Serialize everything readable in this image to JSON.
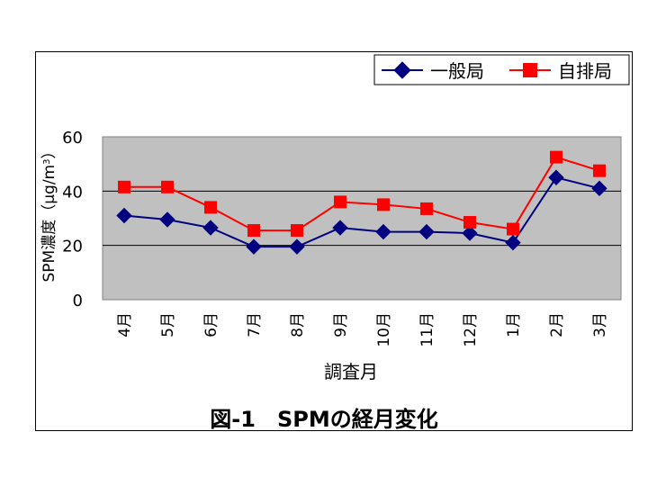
{
  "chart_data": {
    "type": "line",
    "title": "図-1　SPMの経月変化",
    "xlabel": "調査月",
    "ylabel": "SPM濃度（μg/m",
    "ylabel_sup": "3",
    "ylabel_close": "）",
    "categories": [
      "4月",
      "5月",
      "6月",
      "7月",
      "8月",
      "9月",
      "10月",
      "11月",
      "12月",
      "1月",
      "2月",
      "3月"
    ],
    "ylim": [
      0,
      60
    ],
    "yticks": [
      0,
      20,
      40,
      60
    ],
    "grid": true,
    "legend_position": "top-right",
    "plot_background": "#c0c0c0",
    "series": [
      {
        "name": "一般局",
        "color": "#000080",
        "marker": "diamond",
        "values": [
          31,
          29.5,
          26.5,
          19.5,
          19.5,
          26.5,
          25,
          25,
          24.5,
          21,
          45,
          41
        ]
      },
      {
        "name": "自排局",
        "color": "#ff0000",
        "marker": "square",
        "values": [
          41.5,
          41.5,
          34,
          25.5,
          25.5,
          36,
          35,
          33.5,
          28.5,
          26,
          52.5,
          47.5
        ]
      }
    ]
  }
}
